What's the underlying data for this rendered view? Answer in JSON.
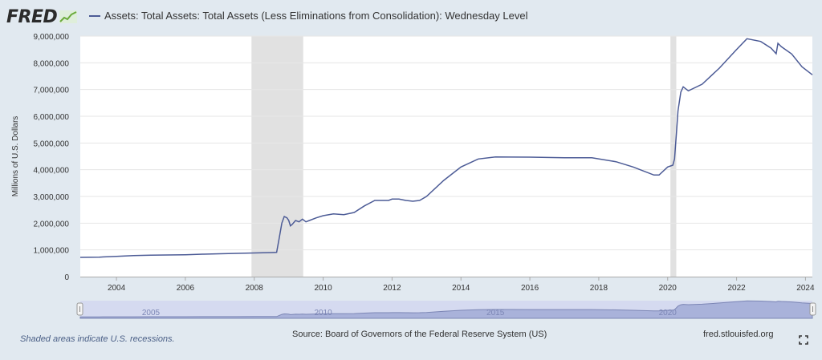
{
  "header": {
    "logo_text": "FRED",
    "logo_icon": "line-chart-icon",
    "legend_label": "Assets: Total Assets: Total Assets (Less Eliminations from Consolidation): Wednesday Level",
    "series_color": "#4c5b96"
  },
  "footer": {
    "recession_note": "Shaded areas indicate U.S. recessions.",
    "source": "Source: Board of Governors of the Federal Reserve System (US)",
    "site": "fred.stlouisfed.org",
    "fullscreen_icon": "fullscreen-icon"
  },
  "colors": {
    "line": "#4c5b96",
    "recession": "#e1e1e1",
    "plot_bg": "#ffffff",
    "page_bg": "#e1e9f0",
    "navigator_fill": "#a9b2da",
    "navigator_bg": "#d5daf0"
  },
  "chart_data": {
    "type": "line",
    "title": "",
    "xlabel": "",
    "ylabel": "Millions of U.S. Dollars",
    "xlim": [
      2002.95,
      2024.2
    ],
    "ylim": [
      0,
      9000000
    ],
    "grid": true,
    "yticks": [
      0,
      1000000,
      2000000,
      3000000,
      4000000,
      5000000,
      6000000,
      7000000,
      8000000,
      9000000
    ],
    "ytick_labels": [
      "0",
      "1,000,000",
      "2,000,000",
      "3,000,000",
      "4,000,000",
      "5,000,000",
      "6,000,000",
      "7,000,000",
      "8,000,000",
      "9,000,000"
    ],
    "xticks": [
      2004,
      2006,
      2008,
      2010,
      2012,
      2014,
      2016,
      2018,
      2020,
      2022,
      2024
    ],
    "xtick_labels": [
      "2004",
      "2006",
      "2008",
      "2010",
      "2012",
      "2014",
      "2016",
      "2018",
      "2020",
      "2022",
      "2024"
    ],
    "recessions": [
      [
        2007.92,
        2009.42
      ],
      [
        2020.08,
        2020.25
      ]
    ],
    "navigator_labels": [
      {
        "x": 2005,
        "text": "2005"
      },
      {
        "x": 2010,
        "text": "2010"
      },
      {
        "x": 2015,
        "text": "2015"
      },
      {
        "x": 2020,
        "text": "2020"
      }
    ],
    "series": [
      {
        "name": "Assets: Total Assets: Total Assets (Less Eliminations from Consolidation): Wednesday Level",
        "x": [
          2002.95,
          2003.5,
          2004.0,
          2004.5,
          2005.0,
          2005.5,
          2006.0,
          2006.5,
          2007.0,
          2007.5,
          2008.0,
          2008.5,
          2008.65,
          2008.72,
          2008.8,
          2008.87,
          2008.95,
          2009.0,
          2009.05,
          2009.1,
          2009.2,
          2009.3,
          2009.4,
          2009.5,
          2009.6,
          2009.8,
          2010.0,
          2010.3,
          2010.6,
          2010.9,
          2011.2,
          2011.5,
          2011.7,
          2011.9,
          2012.0,
          2012.2,
          2012.4,
          2012.6,
          2012.8,
          2013.0,
          2013.5,
          2014.0,
          2014.5,
          2015.0,
          2016.0,
          2017.0,
          2017.8,
          2018.5,
          2019.0,
          2019.6,
          2019.75,
          2020.0,
          2020.15,
          2020.2,
          2020.25,
          2020.3,
          2020.38,
          2020.45,
          2020.6,
          2021.0,
          2021.5,
          2022.0,
          2022.3,
          2022.7,
          2023.0,
          2023.15,
          2023.2,
          2023.3,
          2023.6,
          2023.9,
          2024.2
        ],
        "values": [
          720000,
          730000,
          760000,
          790000,
          800000,
          810000,
          820000,
          840000,
          855000,
          870000,
          885000,
          900000,
          905000,
          1400000,
          2000000,
          2250000,
          2200000,
          2100000,
          1900000,
          1950000,
          2100000,
          2050000,
          2150000,
          2050000,
          2100000,
          2200000,
          2280000,
          2350000,
          2320000,
          2400000,
          2650000,
          2850000,
          2850000,
          2850000,
          2900000,
          2900000,
          2850000,
          2820000,
          2850000,
          3000000,
          3600000,
          4100000,
          4400000,
          4480000,
          4470000,
          4450000,
          4450000,
          4300000,
          4100000,
          3800000,
          3800000,
          4100000,
          4170000,
          4400000,
          5300000,
          6200000,
          6900000,
          7100000,
          6950000,
          7200000,
          7800000,
          8500000,
          8900000,
          8800000,
          8550000,
          8340000,
          8730000,
          8600000,
          8330000,
          7850000,
          7550000
        ]
      }
    ]
  }
}
